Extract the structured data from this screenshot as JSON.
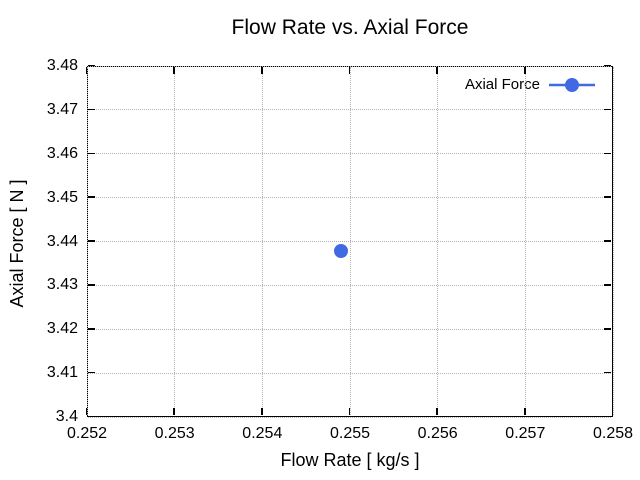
{
  "chart_data": {
    "type": "scatter",
    "title": "Flow Rate vs. Axial Force",
    "xlabel": "Flow Rate [ kg/s ]",
    "ylabel": "Axial Force [ N ]",
    "xlim": [
      0.252,
      0.258
    ],
    "ylim": [
      3.4,
      3.48
    ],
    "x_ticks": [
      0.252,
      0.253,
      0.254,
      0.255,
      0.256,
      0.257,
      0.258
    ],
    "x_tick_labels": [
      "0.252",
      "0.253",
      "0.254",
      "0.255",
      "0.256",
      "0.257",
      "0.258"
    ],
    "y_ticks": [
      3.4,
      3.41,
      3.42,
      3.43,
      3.44,
      3.45,
      3.46,
      3.47,
      3.48
    ],
    "y_tick_labels": [
      "3.4",
      "3.41",
      "3.42",
      "3.43",
      "3.44",
      "3.45",
      "3.46",
      "3.47",
      "3.48"
    ],
    "grid": true,
    "grid_style": "dotted",
    "legend_position": "top-right-inside",
    "series": [
      {
        "name": "Axial Force",
        "color": "#4169e1",
        "marker": "filled-circle",
        "points": [
          {
            "x": 0.2549,
            "y": 3.4378
          }
        ]
      }
    ],
    "colors": {
      "background": "#ffffff",
      "border": "#000000",
      "grid": "#b3b3b3",
      "series1": "#4169e1"
    }
  }
}
